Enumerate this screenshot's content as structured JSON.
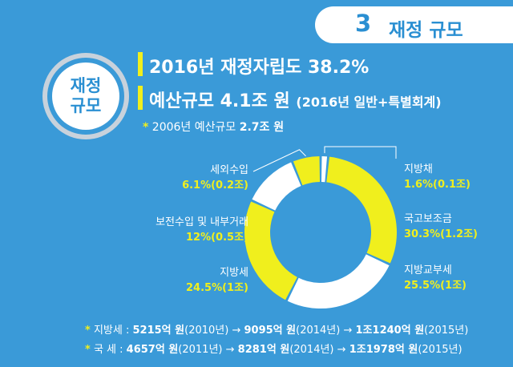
{
  "section": {
    "number": "3",
    "title": "재정 규모"
  },
  "badge": {
    "line1": "재정",
    "line2": "규모"
  },
  "headline1": "2016년 재정자립도 38.2%",
  "headline2_main": "예산규모 4.1조 원",
  "headline2_sub": "(2016년 일반+특별회계)",
  "note": {
    "star": "*",
    "prefix": "2006년 예산규모 ",
    "value": "2.7조 원"
  },
  "colors": {
    "background": "#3a9ad8",
    "yellow": "#f0ef1d",
    "white": "#ffffff",
    "accent": "#2a8fd2"
  },
  "chart_data": {
    "type": "pie",
    "donut": true,
    "slices": [
      {
        "name": "지방채",
        "value_label": "1.6%(0.1조)",
        "percent": 1.6,
        "amount": 0.1,
        "color": "#ffffff"
      },
      {
        "name": "국고보조금",
        "value_label": "30.3%(1.2조)",
        "percent": 30.3,
        "amount": 1.2,
        "color": "#f0ef1d"
      },
      {
        "name": "지방교부세",
        "value_label": "25.5%(1조)",
        "percent": 25.5,
        "amount": 1.0,
        "color": "#ffffff"
      },
      {
        "name": "지방세",
        "value_label": "24.5%(1조)",
        "percent": 24.5,
        "amount": 1.0,
        "color": "#f0ef1d"
      },
      {
        "name": "보전수입 및 내부거래",
        "value_label": "12%(0.5조)",
        "percent": 12.0,
        "amount": 0.5,
        "color": "#ffffff"
      },
      {
        "name": "세외수입",
        "value_label": "6.1%(0.2조)",
        "percent": 6.1,
        "amount": 0.2,
        "color": "#f0ef1d"
      }
    ]
  },
  "footnotes": [
    {
      "star": "*",
      "label": "지방세 : ",
      "v1": "5215억 원",
      "y1": "(2010년)",
      "arrow1": " → ",
      "v2": "9095억 원",
      "y2": "(2014년)",
      "arrow2": " → ",
      "v3": "1조1240억 원",
      "y3": "(2015년)"
    },
    {
      "star": "*",
      "label": "국   세 : ",
      "v1": "4657억 원",
      "y1": "(2011년)",
      "arrow1": " → ",
      "v2": "8281억 원",
      "y2": "(2014년)",
      "arrow2": " → ",
      "v3": "1조1978억 원",
      "y3": "(2015년)"
    }
  ]
}
